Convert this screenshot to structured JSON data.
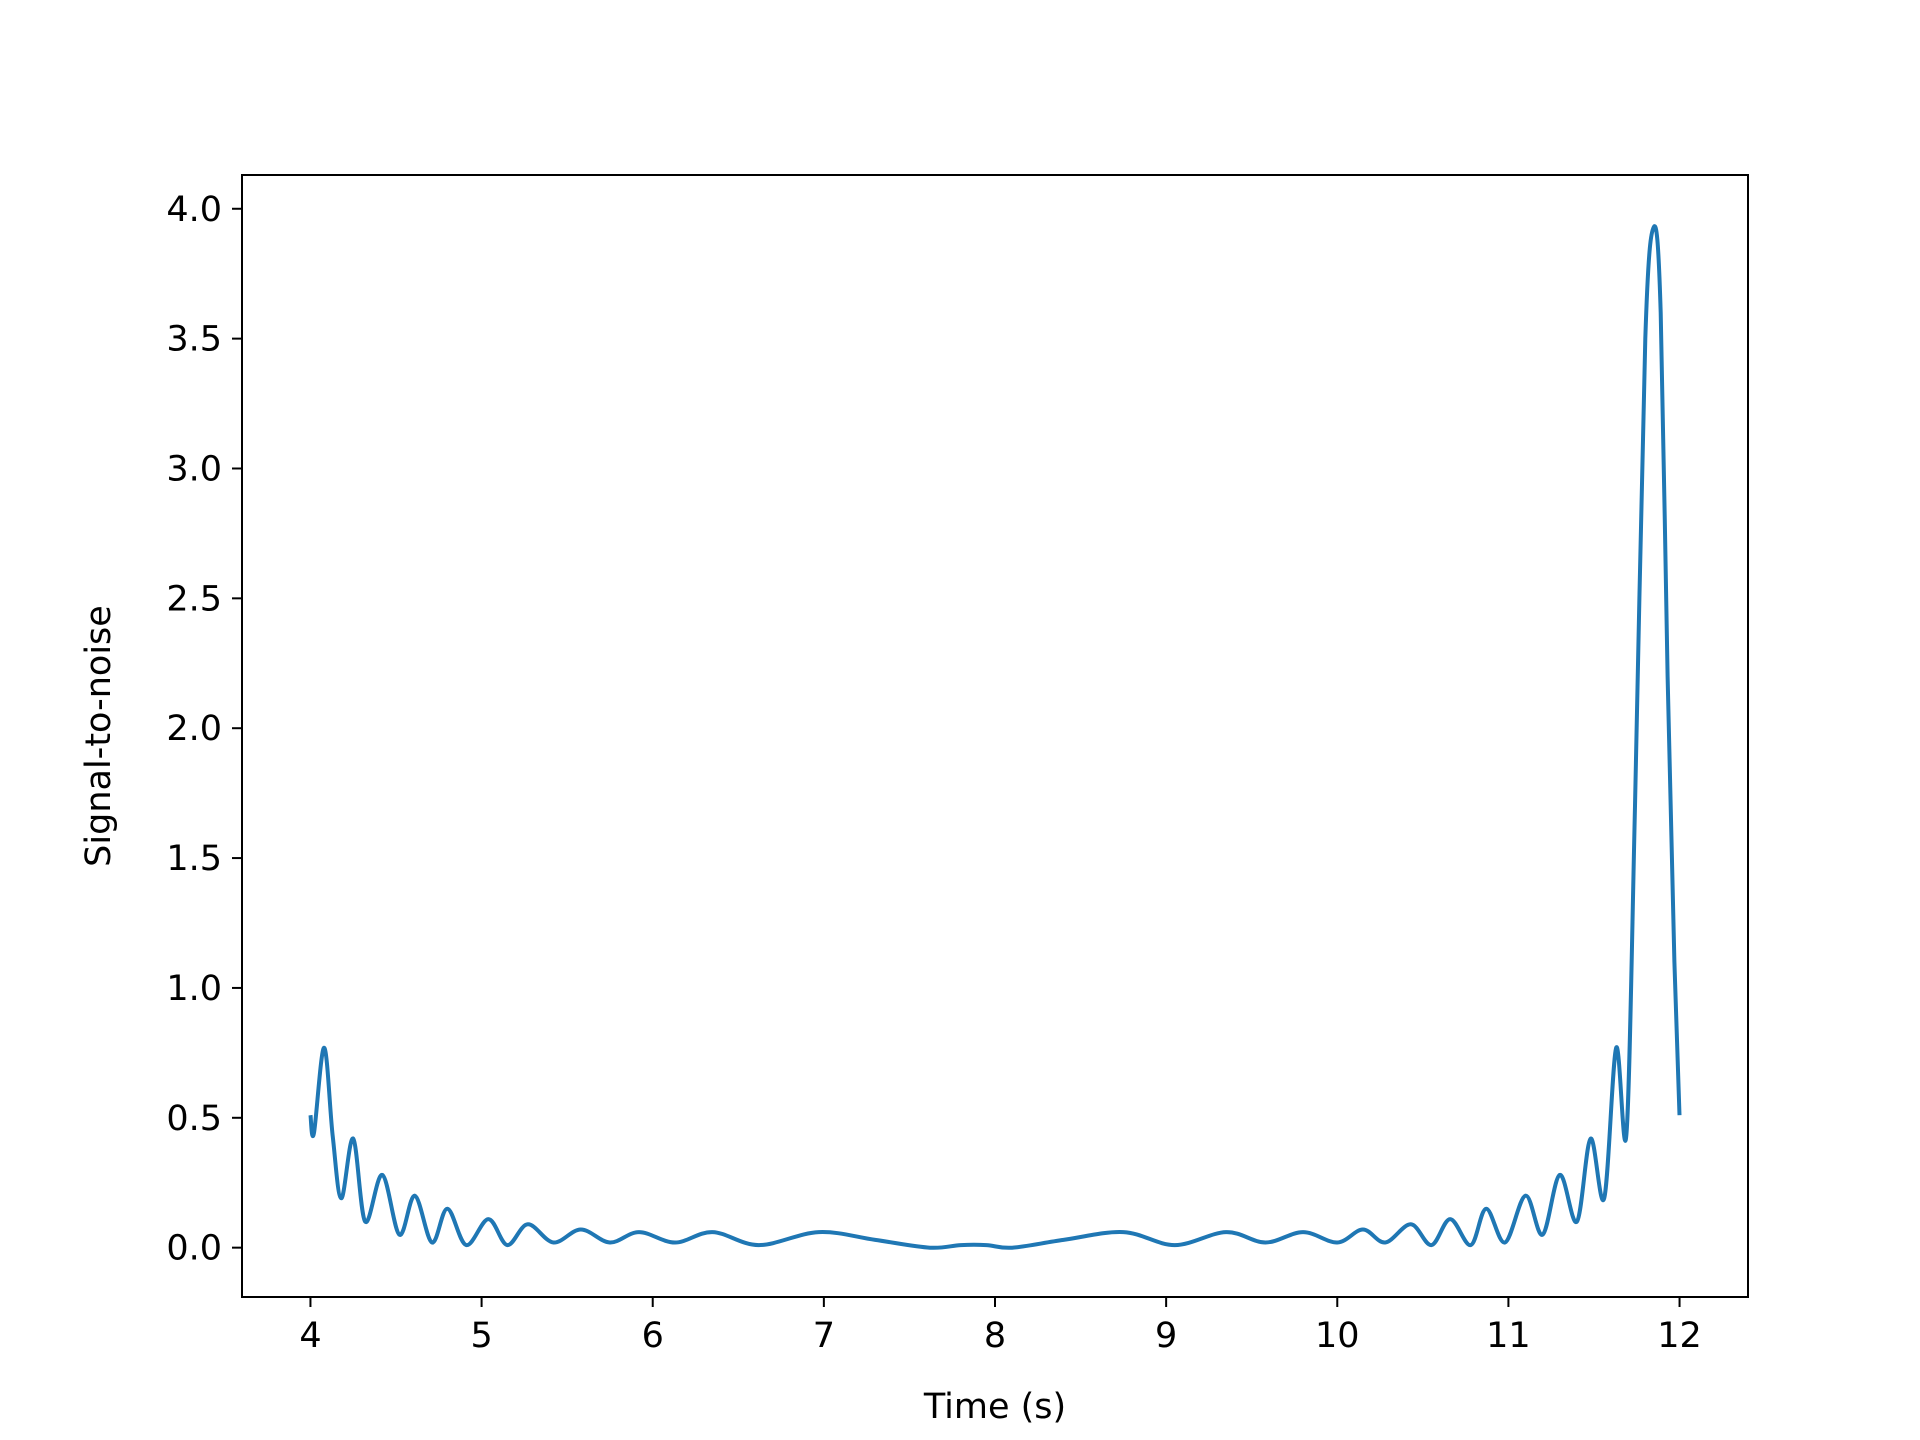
{
  "chart_data": {
    "type": "line",
    "title": "",
    "xlabel": "Time (s)",
    "ylabel": "Signal-to-noise",
    "xlim": [
      3.6,
      12.4
    ],
    "ylim": [
      -0.19,
      4.13
    ],
    "grid": false,
    "legend": "none",
    "x_ticks": [
      4,
      5,
      6,
      7,
      8,
      9,
      10,
      11,
      12
    ],
    "x_tick_labels": [
      "4",
      "5",
      "6",
      "7",
      "8",
      "9",
      "10",
      "11",
      "12"
    ],
    "y_ticks": [
      0.0,
      0.5,
      1.0,
      1.5,
      2.0,
      2.5,
      3.0,
      3.5,
      4.0
    ],
    "y_tick_labels": [
      "0.0",
      "0.5",
      "1.0",
      "1.5",
      "2.0",
      "2.5",
      "3.0",
      "3.5",
      "4.0"
    ],
    "series": [
      {
        "color": "#1f77b4",
        "x": [
          4.0,
          4.02,
          4.08,
          4.13,
          4.18,
          4.25,
          4.32,
          4.42,
          4.52,
          4.61,
          4.71,
          4.8,
          4.91,
          5.04,
          5.15,
          5.27,
          5.42,
          5.58,
          5.75,
          5.92,
          6.13,
          6.35,
          6.62,
          6.97,
          7.3,
          7.62,
          7.8,
          7.95,
          8.1,
          8.4,
          8.75,
          9.05,
          9.35,
          9.58,
          9.8,
          10.0,
          10.15,
          10.28,
          10.43,
          10.55,
          10.66,
          10.78,
          10.87,
          10.98,
          11.1,
          11.2,
          11.3,
          11.4,
          11.48,
          11.56,
          11.63,
          11.69,
          11.74,
          11.8,
          11.85,
          11.89,
          11.93,
          11.97,
          12.0
        ],
        "y": [
          0.51,
          0.44,
          0.77,
          0.43,
          0.19,
          0.42,
          0.1,
          0.28,
          0.05,
          0.2,
          0.02,
          0.15,
          0.01,
          0.11,
          0.01,
          0.09,
          0.02,
          0.07,
          0.02,
          0.06,
          0.02,
          0.06,
          0.01,
          0.06,
          0.03,
          0.0,
          0.01,
          0.01,
          0.0,
          0.03,
          0.06,
          0.01,
          0.06,
          0.02,
          0.06,
          0.02,
          0.07,
          0.02,
          0.09,
          0.01,
          0.11,
          0.01,
          0.15,
          0.02,
          0.2,
          0.05,
          0.28,
          0.1,
          0.42,
          0.19,
          0.77,
          0.44,
          1.7,
          3.5,
          3.93,
          3.6,
          2.2,
          1.1,
          0.51
        ]
      }
    ]
  }
}
